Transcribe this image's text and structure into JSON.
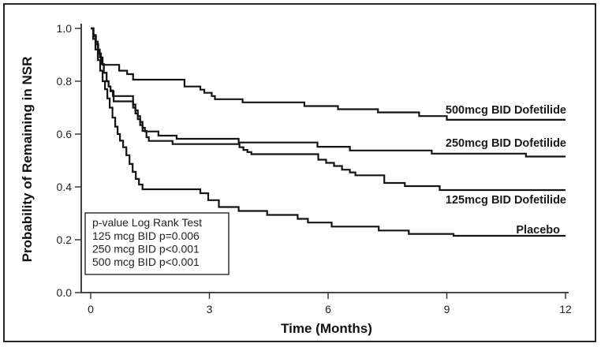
{
  "figure": {
    "background": "#ffffff",
    "border_color": "#262626",
    "line_color": "#141414"
  },
  "chart_data": {
    "type": "line",
    "subtype": "kaplan-meier-step",
    "title": "",
    "xlabel": "Time (Months)",
    "ylabel": "Probability of Remaining in NSR",
    "xlim": [
      0,
      12
    ],
    "ylim": [
      0.0,
      1.0
    ],
    "grid": false,
    "legend_position": "inline-right-labels",
    "x_ticks": [
      "0",
      "3",
      "6",
      "9",
      "12"
    ],
    "y_ticks": [
      "1.0",
      "0.8",
      "0.6",
      "0.4",
      "0.2",
      "0.0"
    ],
    "series": [
      {
        "name": "500mcg BID Dofetilide",
        "points": [
          [
            0,
            1.0
          ],
          [
            0.07,
            0.975
          ],
          [
            0.13,
            0.95
          ],
          [
            0.18,
            0.92
          ],
          [
            0.23,
            0.89
          ],
          [
            0.3,
            0.862
          ],
          [
            0.72,
            0.84
          ],
          [
            0.92,
            0.827
          ],
          [
            1.07,
            0.806
          ],
          [
            2.37,
            0.78
          ],
          [
            2.77,
            0.768
          ],
          [
            2.87,
            0.756
          ],
          [
            3.06,
            0.744
          ],
          [
            3.14,
            0.732
          ],
          [
            3.84,
            0.72
          ],
          [
            5.4,
            0.706
          ],
          [
            6.25,
            0.694
          ],
          [
            7.26,
            0.682
          ],
          [
            8.3,
            0.668
          ],
          [
            9.0,
            0.654
          ],
          [
            12,
            0.654
          ]
        ]
      },
      {
        "name": "250mcg BID Dofetilide",
        "points": [
          [
            0,
            1.0
          ],
          [
            0.07,
            0.97
          ],
          [
            0.13,
            0.94
          ],
          [
            0.19,
            0.905
          ],
          [
            0.26,
            0.865
          ],
          [
            0.33,
            0.832
          ],
          [
            0.4,
            0.8
          ],
          [
            0.45,
            0.78
          ],
          [
            0.5,
            0.765
          ],
          [
            0.56,
            0.744
          ],
          [
            1.07,
            0.712
          ],
          [
            1.13,
            0.69
          ],
          [
            1.19,
            0.668
          ],
          [
            1.25,
            0.646
          ],
          [
            1.31,
            0.624
          ],
          [
            1.37,
            0.61
          ],
          [
            1.71,
            0.594
          ],
          [
            2.17,
            0.582
          ],
          [
            3.74,
            0.568
          ],
          [
            5.73,
            0.552
          ],
          [
            6.55,
            0.538
          ],
          [
            8.62,
            0.526
          ],
          [
            11.0,
            0.515
          ],
          [
            12,
            0.515
          ]
        ]
      },
      {
        "name": "125mcg BID Dofetilide",
        "points": [
          [
            0,
            1.0
          ],
          [
            0.07,
            0.97
          ],
          [
            0.13,
            0.94
          ],
          [
            0.19,
            0.905
          ],
          [
            0.26,
            0.865
          ],
          [
            0.33,
            0.832
          ],
          [
            0.4,
            0.8
          ],
          [
            0.45,
            0.78
          ],
          [
            0.5,
            0.762
          ],
          [
            0.58,
            0.724
          ],
          [
            1.07,
            0.7
          ],
          [
            1.13,
            0.678
          ],
          [
            1.19,
            0.656
          ],
          [
            1.25,
            0.634
          ],
          [
            1.31,
            0.612
          ],
          [
            1.41,
            0.588
          ],
          [
            1.47,
            0.574
          ],
          [
            2.07,
            0.562
          ],
          [
            3.76,
            0.55
          ],
          [
            3.86,
            0.54
          ],
          [
            3.96,
            0.532
          ],
          [
            4.06,
            0.524
          ],
          [
            5.75,
            0.503
          ],
          [
            5.95,
            0.491
          ],
          [
            6.15,
            0.479
          ],
          [
            6.35,
            0.465
          ],
          [
            6.55,
            0.455
          ],
          [
            6.69,
            0.444
          ],
          [
            7.42,
            0.415
          ],
          [
            7.94,
            0.403
          ],
          [
            8.82,
            0.388
          ],
          [
            12,
            0.388
          ]
        ]
      },
      {
        "name": "Placebo",
        "points": [
          [
            0,
            1.0
          ],
          [
            0.06,
            0.96
          ],
          [
            0.12,
            0.92
          ],
          [
            0.18,
            0.88
          ],
          [
            0.24,
            0.84
          ],
          [
            0.3,
            0.8
          ],
          [
            0.36,
            0.77
          ],
          [
            0.42,
            0.735
          ],
          [
            0.48,
            0.7
          ],
          [
            0.55,
            0.662
          ],
          [
            0.62,
            0.628
          ],
          [
            0.68,
            0.6
          ],
          [
            0.74,
            0.575
          ],
          [
            0.82,
            0.55
          ],
          [
            0.9,
            0.52
          ],
          [
            0.98,
            0.487
          ],
          [
            1.06,
            0.457
          ],
          [
            1.14,
            0.43
          ],
          [
            1.22,
            0.409
          ],
          [
            1.31,
            0.391
          ],
          [
            2.77,
            0.376
          ],
          [
            2.97,
            0.35
          ],
          [
            3.24,
            0.324
          ],
          [
            3.74,
            0.309
          ],
          [
            4.46,
            0.294
          ],
          [
            5.23,
            0.279
          ],
          [
            5.49,
            0.265
          ],
          [
            6.09,
            0.25
          ],
          [
            7.28,
            0.235
          ],
          [
            8.04,
            0.222
          ],
          [
            9.17,
            0.215
          ],
          [
            12,
            0.215
          ]
        ]
      }
    ],
    "annotation": {
      "title": "p-value Log Rank Test",
      "lines": [
        "125 mcg BID p=0.006",
        "250 mcg BID p<0.001",
        "500 mcg BID p<0.001"
      ]
    }
  }
}
